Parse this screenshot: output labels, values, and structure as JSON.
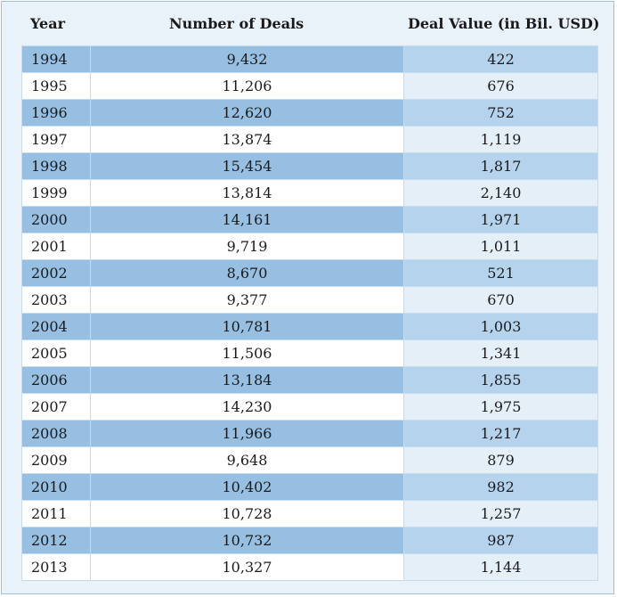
{
  "chart_data": {
    "type": "table",
    "columns": [
      "Year",
      "Number of Deals",
      "Deal Value (in Bil. USD)"
    ],
    "rows": [
      [
        "1994",
        "9,432",
        "422"
      ],
      [
        "1995",
        "11,206",
        "676"
      ],
      [
        "1996",
        "12,620",
        "752"
      ],
      [
        "1997",
        "13,874",
        "1,119"
      ],
      [
        "1998",
        "15,454",
        "1,817"
      ],
      [
        "1999",
        "13,814",
        "2,140"
      ],
      [
        "2000",
        "14,161",
        "1,971"
      ],
      [
        "2001",
        "9,719",
        "1,011"
      ],
      [
        "2002",
        "8,670",
        "521"
      ],
      [
        "2003",
        "9,377",
        "670"
      ],
      [
        "2004",
        "10,781",
        "1,003"
      ],
      [
        "2005",
        "11,506",
        "1,341"
      ],
      [
        "2006",
        "13,184",
        "1,855"
      ],
      [
        "2007",
        "14,230",
        "1,975"
      ],
      [
        "2008",
        "11,966",
        "1,217"
      ],
      [
        "2009",
        "9,648",
        "879"
      ],
      [
        "2010",
        "10,402",
        "982"
      ],
      [
        "2011",
        "10,728",
        "1,257"
      ],
      [
        "2012",
        "10,732",
        "987"
      ],
      [
        "2013",
        "10,327",
        "1,144"
      ]
    ]
  },
  "colors": {
    "panel_bg": "#e9f1f9",
    "panel_border": "#9cc0df",
    "band_dark": "#96bfe1",
    "band_dark_value": "#b6d3ed",
    "band_light": "#ffffff",
    "band_light_value": "#e5eff8"
  }
}
